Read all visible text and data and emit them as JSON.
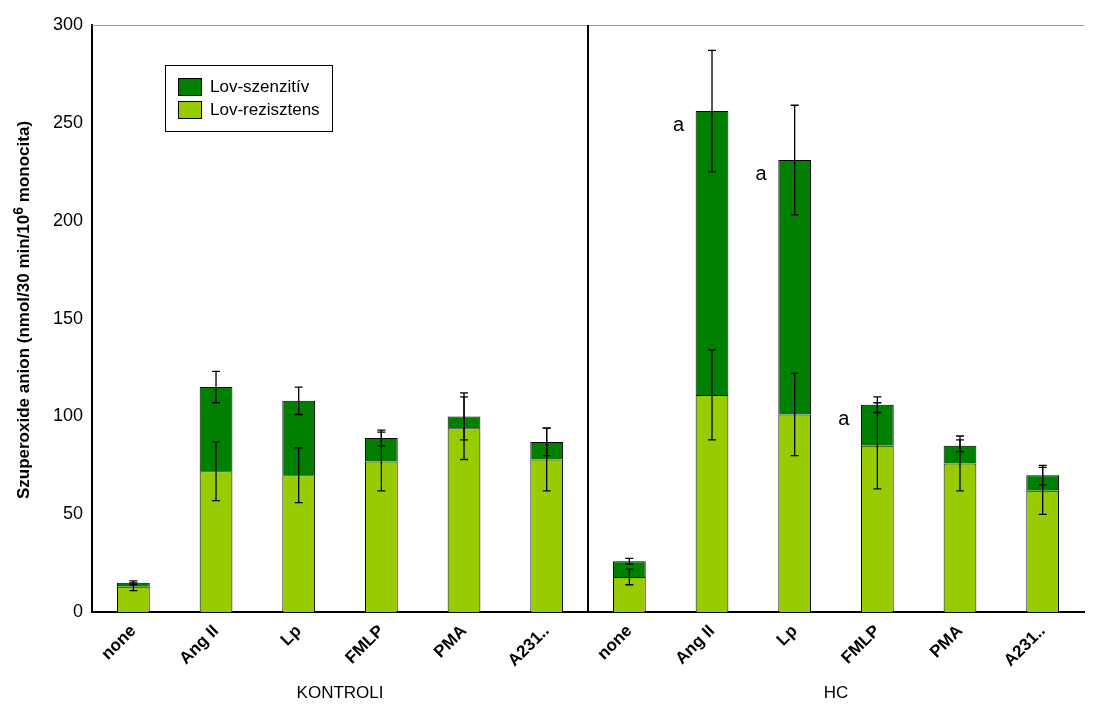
{
  "chart_data": {
    "type": "bar",
    "stacked": true,
    "ylabel": "Szuperoxide anion (nmol/30 min/10$^{6}$ monocita)",
    "categories": [
      "none",
      "Ang II",
      "Lp",
      "FMLP",
      "PMA",
      "A231..",
      "none",
      "Ang II",
      "Lp",
      "FMLP",
      "PMA",
      "A231.."
    ],
    "series": [
      {
        "name": "Lov-rezisztens",
        "color": "#99cc00",
        "values": [
          13,
          72,
          70,
          77,
          94,
          78,
          18,
          111,
          101,
          85,
          76,
          62
        ],
        "errors": [
          2,
          15,
          14,
          15,
          16,
          16,
          4,
          23,
          21,
          22,
          14,
          12
        ]
      },
      {
        "name": "Lov-szenzitív",
        "color": "#008000",
        "values": [
          2,
          43,
          38,
          12,
          6,
          9,
          8,
          145,
          130,
          21,
          9,
          8
        ],
        "errors": [
          1,
          8,
          7,
          4,
          12,
          7,
          1.5,
          31,
          28,
          4,
          3,
          5
        ]
      }
    ],
    "ylim": [
      0,
      300
    ],
    "yticks": [
      0,
      50,
      100,
      150,
      200,
      250,
      300
    ],
    "grid": false,
    "legend": "top left",
    "annotations": [
      "KONTROLI",
      "HC",
      "a",
      "a",
      "a"
    ]
  }
}
